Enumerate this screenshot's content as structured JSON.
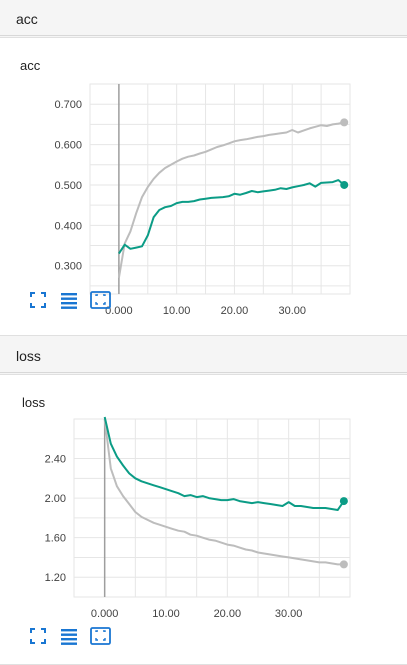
{
  "sections": [
    {
      "header": "acc",
      "card_title": "acc"
    },
    {
      "header": "loss",
      "card_title": "loss"
    }
  ],
  "colors": {
    "series_gray": "#bdbdbd",
    "series_teal": "#0b9c86",
    "grid": "#e6e6e6",
    "axis": "#9e9e9e",
    "icon": "#1976d2"
  },
  "icons": [
    "expand-icon",
    "lines-icon",
    "fit-domain-icon"
  ],
  "chart_data": [
    {
      "type": "line",
      "title": "acc",
      "xlabel": "",
      "ylabel": "",
      "xlim": [
        -5,
        40
      ],
      "ylim": [
        0.23,
        0.75
      ],
      "xticks": [
        0,
        10,
        20,
        30
      ],
      "xtick_labels": [
        "0.000",
        "10.00",
        "20.00",
        "30.00"
      ],
      "yticks": [
        0.3,
        0.4,
        0.5,
        0.6,
        0.7
      ],
      "ytick_labels": [
        "0.300",
        "0.400",
        "0.500",
        "0.600",
        "0.700"
      ],
      "grid": true,
      "series": [
        {
          "color": "#bdbdbd",
          "x": [
            0,
            1,
            2,
            3,
            4,
            5,
            6,
            7,
            8,
            9,
            10,
            11,
            12,
            13,
            14,
            15,
            16,
            17,
            18,
            19,
            20,
            21,
            22,
            23,
            24,
            25,
            26,
            27,
            28,
            29,
            30,
            31,
            32,
            33,
            34,
            35,
            36,
            37,
            38,
            39
          ],
          "values": [
            0.27,
            0.355,
            0.385,
            0.43,
            0.47,
            0.495,
            0.515,
            0.53,
            0.542,
            0.55,
            0.558,
            0.565,
            0.57,
            0.573,
            0.578,
            0.582,
            0.588,
            0.594,
            0.598,
            0.603,
            0.608,
            0.611,
            0.613,
            0.616,
            0.619,
            0.621,
            0.624,
            0.626,
            0.628,
            0.63,
            0.636,
            0.63,
            0.635,
            0.64,
            0.644,
            0.648,
            0.646,
            0.65,
            0.652,
            0.655
          ]
        },
        {
          "color": "#0b9c86",
          "x": [
            0,
            1,
            2,
            3,
            4,
            5,
            6,
            7,
            8,
            9,
            10,
            11,
            12,
            13,
            14,
            15,
            16,
            17,
            18,
            19,
            20,
            21,
            22,
            23,
            24,
            25,
            26,
            27,
            28,
            29,
            30,
            31,
            32,
            33,
            34,
            35,
            36,
            37,
            38,
            39
          ],
          "values": [
            0.33,
            0.352,
            0.342,
            0.345,
            0.348,
            0.375,
            0.42,
            0.438,
            0.445,
            0.448,
            0.455,
            0.458,
            0.458,
            0.46,
            0.464,
            0.466,
            0.468,
            0.469,
            0.47,
            0.472,
            0.478,
            0.476,
            0.48,
            0.485,
            0.482,
            0.484,
            0.486,
            0.488,
            0.492,
            0.49,
            0.494,
            0.497,
            0.5,
            0.504,
            0.496,
            0.505,
            0.506,
            0.507,
            0.512,
            0.5
          ]
        }
      ]
    },
    {
      "type": "line",
      "title": "loss",
      "xlabel": "",
      "ylabel": "",
      "xlim": [
        -5,
        40
      ],
      "ylim": [
        1.0,
        2.8
      ],
      "xticks": [
        0,
        10,
        20,
        30
      ],
      "xtick_labels": [
        "0.000",
        "10.00",
        "20.00",
        "30.00"
      ],
      "yticks": [
        1.2,
        1.6,
        2.0,
        2.4
      ],
      "ytick_labels": [
        "1.20",
        "1.60",
        "2.00",
        "2.40"
      ],
      "grid": true,
      "series": [
        {
          "color": "#bdbdbd",
          "x": [
            0,
            1,
            2,
            3,
            4,
            5,
            6,
            7,
            8,
            9,
            10,
            11,
            12,
            13,
            14,
            15,
            16,
            17,
            18,
            19,
            20,
            21,
            22,
            23,
            24,
            25,
            26,
            27,
            28,
            29,
            30,
            31,
            32,
            33,
            34,
            35,
            36,
            37,
            38,
            39
          ],
          "values": [
            2.8,
            2.3,
            2.12,
            2.02,
            1.94,
            1.86,
            1.81,
            1.78,
            1.75,
            1.73,
            1.71,
            1.69,
            1.67,
            1.66,
            1.63,
            1.62,
            1.6,
            1.58,
            1.57,
            1.55,
            1.53,
            1.52,
            1.5,
            1.48,
            1.47,
            1.45,
            1.44,
            1.43,
            1.42,
            1.41,
            1.4,
            1.39,
            1.38,
            1.37,
            1.36,
            1.35,
            1.35,
            1.34,
            1.33,
            1.33
          ]
        },
        {
          "color": "#0b9c86",
          "x": [
            0,
            1,
            2,
            3,
            4,
            5,
            6,
            7,
            8,
            9,
            10,
            11,
            12,
            13,
            14,
            15,
            16,
            17,
            18,
            19,
            20,
            21,
            22,
            23,
            24,
            25,
            26,
            27,
            28,
            29,
            30,
            31,
            32,
            33,
            34,
            35,
            36,
            37,
            38,
            39
          ],
          "values": [
            2.82,
            2.55,
            2.42,
            2.33,
            2.25,
            2.2,
            2.17,
            2.15,
            2.13,
            2.11,
            2.09,
            2.07,
            2.05,
            2.02,
            2.03,
            2.01,
            2.02,
            2.0,
            1.99,
            1.98,
            1.98,
            1.99,
            1.97,
            1.96,
            1.95,
            1.96,
            1.95,
            1.94,
            1.93,
            1.92,
            1.96,
            1.92,
            1.92,
            1.91,
            1.9,
            1.9,
            1.9,
            1.89,
            1.88,
            1.97
          ]
        }
      ]
    }
  ]
}
